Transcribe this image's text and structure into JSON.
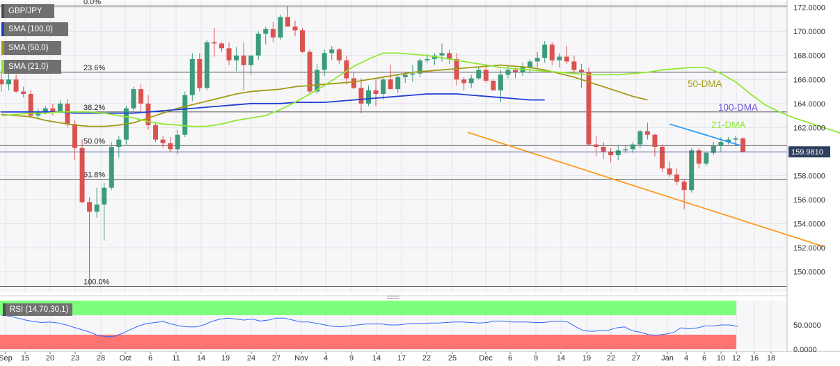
{
  "legend": [
    {
      "label": "GBP/JPY",
      "color": "#4d4d4d"
    },
    {
      "label": "SMA (100,0)",
      "color": "#1f3fd1"
    },
    {
      "label": "SMA (50,0)",
      "color": "#a39a14"
    },
    {
      "label": "SMA (21,0)",
      "color": "#8fe832"
    }
  ],
  "rsi_label": "RSI (14,70,30,1)",
  "colors": {
    "bull": "#3c9b7a",
    "bear": "#d9534f",
    "sma100": "#1f3fd1",
    "sma50": "#a39a14",
    "sma21": "#8fe832",
    "trend_up": "#2f9cf0",
    "trend_down": "#ff9a1a",
    "last_price_tag": "#2f3f5f",
    "rsi_line": "#3366ff",
    "overbought": "#7dff7d",
    "oversold": "#ff7373"
  },
  "chart_data": {
    "type": "candlestick",
    "symbol": "GBP/JPY",
    "x_ticks": [
      "Sep",
      "15",
      "20",
      "23",
      "28",
      "Oct",
      "6",
      "11",
      "14",
      "19",
      "24",
      "27",
      "Nov",
      "4",
      "9",
      "14",
      "17",
      "22",
      "25",
      "Dec",
      "6",
      "9",
      "14",
      "19",
      "22",
      "27",
      "Jan",
      "4",
      "6",
      "10",
      "12",
      "16",
      "18"
    ],
    "y_ticks": [
      "172.0000",
      "170.0000",
      "168.0000",
      "166.0000",
      "164.0000",
      "162.0000",
      "160.0000",
      "158.0000",
      "156.0000",
      "154.0000",
      "152.0000",
      "150.0000"
    ],
    "ylim": [
      148.3,
      172.5
    ],
    "last_price": "159.9810",
    "fib_levels": [
      {
        "label": "0.0%",
        "value": 172.1
      },
      {
        "label": "23.6%",
        "value": 166.6
      },
      {
        "label": "38.2%",
        "value": 163.3
      },
      {
        "label": "50.0%",
        "value": 160.5
      },
      {
        "label": "61.8%",
        "value": 157.7
      },
      {
        "label": "100.0%",
        "value": 148.8
      }
    ],
    "annotations": [
      {
        "text": "50-DMA",
        "color": "#a39a14"
      },
      {
        "text": "100-DMA",
        "color": "#6a4fd6"
      },
      {
        "text": "21-DMA",
        "color": "#8fe832"
      }
    ],
    "candles": [
      [
        166.0,
        166.8,
        165.0,
        165.6
      ],
      [
        165.6,
        166.6,
        165.1,
        166.0
      ],
      [
        166.0,
        166.4,
        164.9,
        165.0
      ],
      [
        165.0,
        165.4,
        164.5,
        164.8
      ],
      [
        164.8,
        165.1,
        162.8,
        163.0
      ],
      [
        163.0,
        163.6,
        162.7,
        163.3
      ],
      [
        163.3,
        163.8,
        163.1,
        163.6
      ],
      [
        163.6,
        164.0,
        163.0,
        163.3
      ],
      [
        163.3,
        164.3,
        163.2,
        164.0
      ],
      [
        164.0,
        164.4,
        162.0,
        162.3
      ],
      [
        162.3,
        162.6,
        159.3,
        160.3
      ],
      [
        160.3,
        161.0,
        155.7,
        155.8
      ],
      [
        155.8,
        156.2,
        148.8,
        155.0
      ],
      [
        155.0,
        157.0,
        154.5,
        155.6
      ],
      [
        155.6,
        157.4,
        152.6,
        157.0
      ],
      [
        157.0,
        160.8,
        156.8,
        160.4
      ],
      [
        160.4,
        161.3,
        159.5,
        161.0
      ],
      [
        161.0,
        163.8,
        160.6,
        163.6
      ],
      [
        163.6,
        165.4,
        163.4,
        165.2
      ],
      [
        165.2,
        165.6,
        163.2,
        164.0
      ],
      [
        164.0,
        164.7,
        161.8,
        162.2
      ],
      [
        162.2,
        162.4,
        160.8,
        161.0
      ],
      [
        161.0,
        161.3,
        160.3,
        160.7
      ],
      [
        160.7,
        161.2,
        160.0,
        160.2
      ],
      [
        160.2,
        161.8,
        159.8,
        161.4
      ],
      [
        161.4,
        165.0,
        161.2,
        164.7
      ],
      [
        164.7,
        168.2,
        164.2,
        167.7
      ],
      [
        167.7,
        168.2,
        165.0,
        165.3
      ],
      [
        165.3,
        169.3,
        165.1,
        169.1
      ],
      [
        169.1,
        170.3,
        167.9,
        169.0
      ],
      [
        169.0,
        169.1,
        168.3,
        168.6
      ],
      [
        168.6,
        169.1,
        167.2,
        167.6
      ],
      [
        167.6,
        168.7,
        166.7,
        168.0
      ],
      [
        168.0,
        169.1,
        165.1,
        167.2
      ],
      [
        167.2,
        168.0,
        166.4,
        168.0
      ],
      [
        168.0,
        170.0,
        167.6,
        169.8
      ],
      [
        169.8,
        170.4,
        168.9,
        170.2
      ],
      [
        170.2,
        170.8,
        169.1,
        169.5
      ],
      [
        169.5,
        171.4,
        169.3,
        171.2
      ],
      [
        171.2,
        172.1,
        170.4,
        170.4
      ],
      [
        170.4,
        170.9,
        169.6,
        170.1
      ],
      [
        170.1,
        170.3,
        168.2,
        168.3
      ],
      [
        168.3,
        168.5,
        164.8,
        165.0
      ],
      [
        165.0,
        167.3,
        164.8,
        166.8
      ],
      [
        166.8,
        168.5,
        166.3,
        168.2
      ],
      [
        168.2,
        168.8,
        167.6,
        168.5
      ],
      [
        168.5,
        168.6,
        167.3,
        167.6
      ],
      [
        167.6,
        168.0,
        165.6,
        166.1
      ],
      [
        166.1,
        166.6,
        165.2,
        165.3
      ],
      [
        165.3,
        166.1,
        163.2,
        164.0
      ],
      [
        164.0,
        165.5,
        163.8,
        165.1
      ],
      [
        165.1,
        166.0,
        163.8,
        164.8
      ],
      [
        164.8,
        166.2,
        164.3,
        166.0
      ],
      [
        166.0,
        167.2,
        165.4,
        165.2
      ],
      [
        165.2,
        166.4,
        164.9,
        166.2
      ],
      [
        166.2,
        166.6,
        165.7,
        166.4
      ],
      [
        166.4,
        167.2,
        165.8,
        166.5
      ],
      [
        166.5,
        167.8,
        166.2,
        167.6
      ],
      [
        167.6,
        168.1,
        167.4,
        167.7
      ],
      [
        167.7,
        168.2,
        167.2,
        168.0
      ],
      [
        168.0,
        169.0,
        167.5,
        168.2
      ],
      [
        168.2,
        168.5,
        167.3,
        167.7
      ],
      [
        167.7,
        168.2,
        165.5,
        166.0
      ],
      [
        166.0,
        166.2,
        165.1,
        165.7
      ],
      [
        165.7,
        166.4,
        165.3,
        166.1
      ],
      [
        166.1,
        167.0,
        166.0,
        166.8
      ],
      [
        166.8,
        167.3,
        165.7,
        165.9
      ],
      [
        165.9,
        166.0,
        165.1,
        165.1
      ],
      [
        165.1,
        166.8,
        164.1,
        166.4
      ],
      [
        166.4,
        167.1,
        166.1,
        166.8
      ],
      [
        166.8,
        167.0,
        166.1,
        166.6
      ],
      [
        166.6,
        167.4,
        166.3,
        167.0
      ],
      [
        167.0,
        167.7,
        166.5,
        167.5
      ],
      [
        167.5,
        168.3,
        167.0,
        167.8
      ],
      [
        167.8,
        169.2,
        167.4,
        168.9
      ],
      [
        168.9,
        169.1,
        167.2,
        167.6
      ],
      [
        167.6,
        168.2,
        167.0,
        167.9
      ],
      [
        167.9,
        168.8,
        167.3,
        167.5
      ],
      [
        167.5,
        168.0,
        166.5,
        166.8
      ],
      [
        166.8,
        167.3,
        165.3,
        166.6
      ],
      [
        166.6,
        167.0,
        160.5,
        160.6
      ],
      [
        160.6,
        161.3,
        159.6,
        160.4
      ],
      [
        160.4,
        160.8,
        159.4,
        160.0
      ],
      [
        160.0,
        160.3,
        159.1,
        159.7
      ],
      [
        159.7,
        160.5,
        159.3,
        160.1
      ],
      [
        160.1,
        160.5,
        159.9,
        160.2
      ],
      [
        160.2,
        160.8,
        159.9,
        160.6
      ],
      [
        160.6,
        161.8,
        160.3,
        161.7
      ],
      [
        161.7,
        162.4,
        161.0,
        161.4
      ],
      [
        161.4,
        161.5,
        159.6,
        160.4
      ],
      [
        160.4,
        160.6,
        158.3,
        158.6
      ],
      [
        158.6,
        159.2,
        157.9,
        158.1
      ],
      [
        158.1,
        158.6,
        157.2,
        157.5
      ],
      [
        157.5,
        157.7,
        155.2,
        156.8
      ],
      [
        156.8,
        160.3,
        156.6,
        160.1
      ],
      [
        160.1,
        160.3,
        158.6,
        159.0
      ],
      [
        159.0,
        160.0,
        158.8,
        159.9
      ],
      [
        159.9,
        160.8,
        159.7,
        160.5
      ],
      [
        160.5,
        161.2,
        160.0,
        160.8
      ],
      [
        160.8,
        161.2,
        160.6,
        161.0
      ],
      [
        161.0,
        161.3,
        160.5,
        161.1
      ],
      [
        161.1,
        161.2,
        159.9,
        159.98
      ]
    ],
    "sma21": [
      163.0,
      163.1,
      163.2,
      163.2,
      163.3,
      163.3,
      163.3,
      163.2,
      163.0,
      162.8,
      162.5,
      162.3,
      162.2,
      162.1,
      162.1,
      162.3,
      162.6,
      162.8,
      163.0,
      163.5,
      164.1,
      164.8,
      165.5,
      166.3,
      167.1,
      167.7,
      168.2,
      168.2,
      168.1,
      168.0,
      167.8,
      167.6,
      167.4,
      167.2,
      167.0,
      166.9,
      166.8,
      166.7,
      166.6,
      166.5,
      166.4,
      166.4,
      166.4,
      166.5,
      166.6,
      166.8,
      166.9,
      167.0,
      167.0,
      166.5,
      165.8,
      164.8,
      163.9,
      163.3,
      162.8,
      162.4,
      162.0,
      161.6,
      161.2,
      161.0,
      160.8
    ],
    "sma50": [
      163.1,
      163.0,
      162.9,
      162.6,
      162.4,
      162.2,
      162.1,
      162.1,
      162.2,
      162.4,
      162.8,
      163.2,
      163.6,
      163.9,
      164.2,
      164.5,
      164.8,
      165.0,
      165.1,
      165.2,
      165.4,
      165.5,
      165.6,
      165.7,
      165.8,
      166.0,
      166.2,
      166.4,
      166.6,
      166.7,
      166.8,
      166.9,
      167.0,
      167.1,
      167.2,
      167.1,
      167.0,
      166.8,
      166.5,
      166.2,
      165.8,
      165.4,
      165.0,
      164.6,
      164.3
    ],
    "sma100": [
      163.3,
      163.3,
      163.3,
      163.3,
      163.3,
      163.2,
      163.2,
      163.2,
      163.2,
      163.2,
      163.3,
      163.4,
      163.5,
      163.6,
      163.7,
      163.8,
      163.9,
      164.0,
      164.0,
      164.0,
      164.1,
      164.1,
      164.1,
      164.2,
      164.3,
      164.4,
      164.5,
      164.6,
      164.7,
      164.8,
      164.8,
      164.8,
      164.7,
      164.6,
      164.5,
      164.4,
      164.3,
      164.3
    ],
    "trendlines": [
      {
        "name": "resistance",
        "from": [
          91,
          162.3
        ],
        "to": [
          100.7,
          160.5
        ]
      },
      {
        "name": "support",
        "from": [
          63.5,
          161.6
        ],
        "to": [
          112,
          152.1
        ]
      }
    ],
    "rsi": {
      "ylim": [
        0,
        100
      ],
      "y_ticks": [
        "50.0000",
        "0.0000"
      ],
      "overbought": 70,
      "oversold": 30,
      "values": [
        70,
        68,
        64,
        60,
        57,
        55,
        56,
        54,
        50,
        45,
        40,
        35,
        28,
        26,
        27,
        33,
        41,
        48,
        53,
        55,
        57,
        52,
        48,
        46,
        46,
        50,
        57,
        62,
        64,
        62,
        60,
        62,
        58,
        60,
        64,
        64,
        60,
        56,
        56,
        53,
        50,
        47,
        46,
        48,
        50,
        52,
        52,
        52,
        50,
        50,
        52,
        53,
        53,
        54,
        54,
        55,
        56,
        56,
        55,
        54,
        55,
        58,
        58,
        56,
        56,
        56,
        55,
        55,
        57,
        58,
        56,
        46,
        38,
        37,
        38,
        39,
        44,
        46,
        38,
        35,
        30,
        29,
        31,
        34,
        44,
        42,
        44,
        48,
        48,
        50,
        50,
        47
      ]
    }
  }
}
